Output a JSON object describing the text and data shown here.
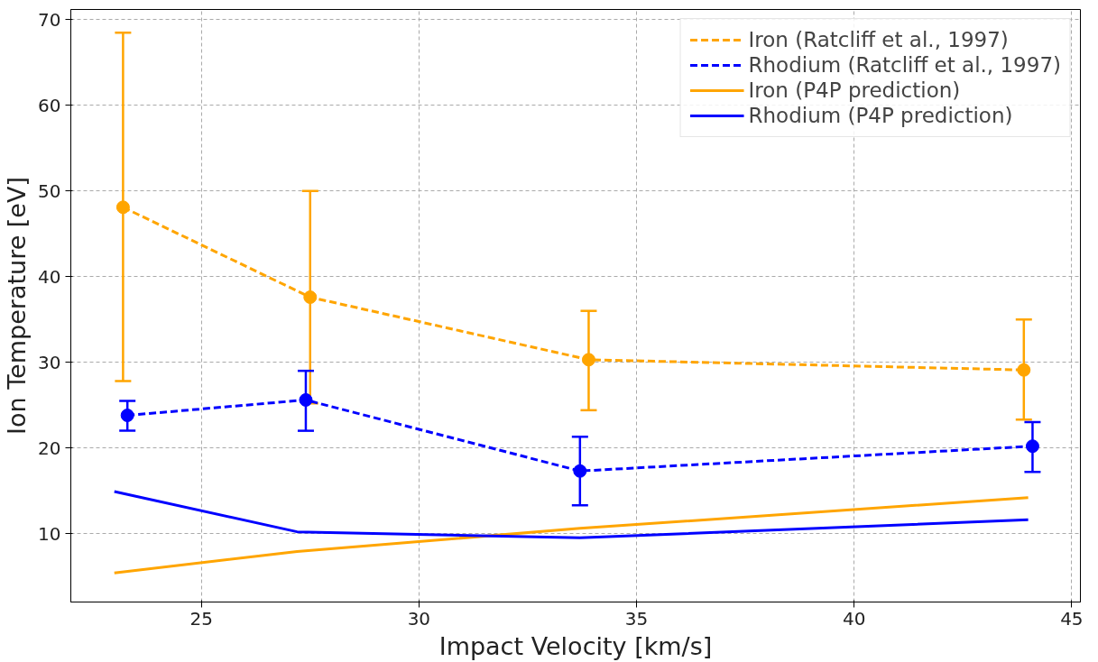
{
  "chart_data": {
    "type": "line",
    "xlabel": "Impact Velocity [km/s]",
    "ylabel": "Ion Temperature [eV]",
    "xlim": [
      22,
      45.2
    ],
    "ylim": [
      2,
      71.2
    ],
    "xticks": [
      25,
      30,
      35,
      40,
      45
    ],
    "yticks": [
      10,
      20,
      30,
      40,
      50,
      60,
      70
    ],
    "grid": true,
    "legend": "top right",
    "series": [
      {
        "name": "Iron (Ratcliff et al., 1997)",
        "color": "#ffa500",
        "x": [
          23.2,
          27.5,
          33.9,
          43.9
        ],
        "values": [
          48.1,
          37.6,
          30.3,
          29.1
        ],
        "errors": [
          [
            27.8,
            68.5
          ],
          [
            25.2,
            50
          ],
          [
            24.4,
            36
          ],
          [
            23.3,
            35
          ]
        ],
        "marker": "circle",
        "line_style": "dashed"
      },
      {
        "name": "Rhodium (Ratcliff et al., 1997)",
        "color": "#0000ff",
        "x": [
          23.3,
          27.4,
          33.7,
          44.1
        ],
        "values": [
          23.8,
          25.6,
          17.3,
          20.2
        ],
        "errors": [
          [
            22,
            25.5
          ],
          [
            22,
            29
          ],
          [
            13.3,
            21.3
          ],
          [
            17.2,
            23
          ]
        ],
        "marker": "circle",
        "line_style": "dashed"
      },
      {
        "name": "Iron (P4P prediction)",
        "color": "#ffa500",
        "x": [
          23.0,
          27.2,
          33.7,
          44.0
        ],
        "values": [
          5.4,
          7.9,
          10.6,
          14.2
        ],
        "marker": "none",
        "line_style": "solid"
      },
      {
        "name": "Rhodium (P4P prediction)",
        "color": "#0000ff",
        "x": [
          23.0,
          27.2,
          33.7,
          44.0
        ],
        "values": [
          14.9,
          10.2,
          9.5,
          11.6
        ],
        "marker": "none",
        "line_style": "solid"
      }
    ]
  }
}
